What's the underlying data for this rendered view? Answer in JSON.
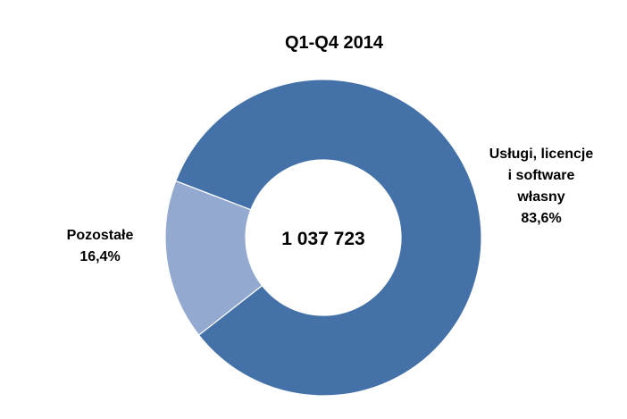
{
  "chart_data": {
    "type": "pie",
    "variant": "donut",
    "title": "Q1-Q4 2014",
    "center_value": "1 037 723",
    "slices": [
      {
        "label_lines": [
          "Usługi, licencje",
          "i software",
          "własny"
        ],
        "percent_label": "83,6%",
        "value": 83.6,
        "color": "#4472a8"
      },
      {
        "label_lines": [
          "Pozostałe"
        ],
        "percent_label": "16,4%",
        "value": 16.4,
        "color": "#93a9cf"
      }
    ],
    "start_angle_deg": 291,
    "direction": "clockwise",
    "separator_color": "#ffffff",
    "background": "#ffffff"
  }
}
